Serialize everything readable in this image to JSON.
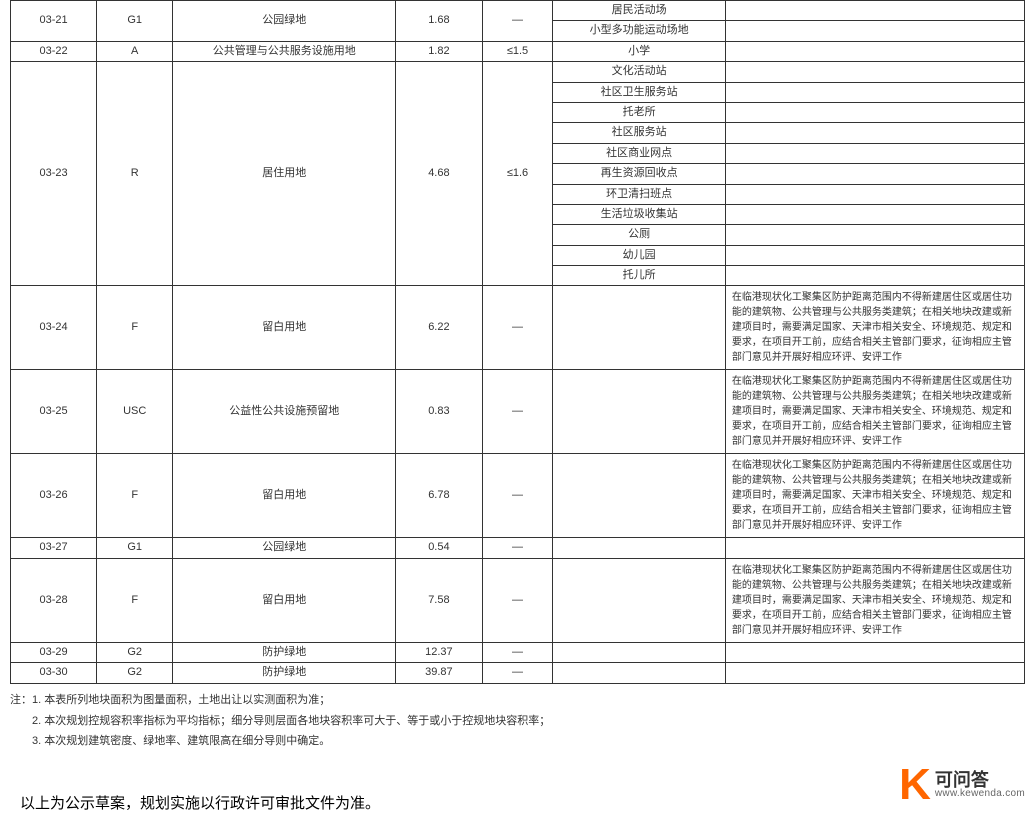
{
  "table": {
    "col_widths_pct": [
      8.5,
      7.5,
      22,
      8.5,
      7,
      17,
      29.5
    ],
    "rows": [
      {
        "id": "03-21",
        "code": "G1",
        "usage": "公园绿地",
        "area": "1.68",
        "ratio": "—",
        "facilities": [
          "居民活动场",
          "小型多功能运动场地"
        ],
        "remarks": [
          "",
          ""
        ]
      },
      {
        "id": "03-22",
        "code": "A",
        "usage": "公共管理与公共服务设施用地",
        "area": "1.82",
        "ratio": "≤1.5",
        "facilities": [
          "小学"
        ],
        "remarks": [
          ""
        ]
      },
      {
        "id": "03-23",
        "code": "R",
        "usage": "居住用地",
        "area": "4.68",
        "ratio": "≤1.6",
        "facilities": [
          "文化活动站",
          "社区卫生服务站",
          "托老所",
          "社区服务站",
          "社区商业网点",
          "再生资源回收点",
          "环卫清扫班点",
          "生活垃圾收集站",
          "公厕",
          "幼儿园",
          "托儿所"
        ],
        "remarks": [
          "",
          "",
          "",
          "",
          "",
          "",
          "",
          "",
          "",
          "",
          ""
        ]
      },
      {
        "id": "03-24",
        "code": "F",
        "usage": "留白用地",
        "area": "6.22",
        "ratio": "—",
        "facilities": [
          ""
        ],
        "remarks": [
          "在临港现状化工聚集区防护距离范围内不得新建居住区或居住功能的建筑物、公共管理与公共服务类建筑；在相关地块改建或新建项目时，需要满足国家、天津市相关安全、环境规范、规定和要求，在项目开工前，应结合相关主管部门要求，征询相应主管部门意见并开展好相应环评、安评工作"
        ]
      },
      {
        "id": "03-25",
        "code": "USC",
        "usage": "公益性公共设施预留地",
        "area": "0.83",
        "ratio": "—",
        "facilities": [
          ""
        ],
        "remarks": [
          "在临港现状化工聚集区防护距离范围内不得新建居住区或居住功能的建筑物、公共管理与公共服务类建筑；在相关地块改建或新建项目时，需要满足国家、天津市相关安全、环境规范、规定和要求，在项目开工前，应结合相关主管部门要求，征询相应主管部门意见并开展好相应环评、安评工作"
        ]
      },
      {
        "id": "03-26",
        "code": "F",
        "usage": "留白用地",
        "area": "6.78",
        "ratio": "—",
        "facilities": [
          ""
        ],
        "remarks": [
          "在临港现状化工聚集区防护距离范围内不得新建居住区或居住功能的建筑物、公共管理与公共服务类建筑；在相关地块改建或新建项目时，需要满足国家、天津市相关安全、环境规范、规定和要求，在项目开工前，应结合相关主管部门要求，征询相应主管部门意见并开展好相应环评、安评工作"
        ]
      },
      {
        "id": "03-27",
        "code": "G1",
        "usage": "公园绿地",
        "area": "0.54",
        "ratio": "—",
        "facilities": [
          ""
        ],
        "remarks": [
          ""
        ]
      },
      {
        "id": "03-28",
        "code": "F",
        "usage": "留白用地",
        "area": "7.58",
        "ratio": "—",
        "facilities": [
          ""
        ],
        "remarks": [
          "在临港现状化工聚集区防护距离范围内不得新建居住区或居住功能的建筑物、公共管理与公共服务类建筑；在相关地块改建或新建项目时，需要满足国家、天津市相关安全、环境规范、规定和要求，在项目开工前，应结合相关主管部门要求，征询相应主管部门意见并开展好相应环评、安评工作"
        ]
      },
      {
        "id": "03-29",
        "code": "G2",
        "usage": "防护绿地",
        "area": "12.37",
        "ratio": "—",
        "facilities": [
          ""
        ],
        "remarks": [
          ""
        ]
      },
      {
        "id": "03-30",
        "code": "G2",
        "usage": "防护绿地",
        "area": "39.87",
        "ratio": "—",
        "facilities": [
          ""
        ],
        "remarks": [
          ""
        ]
      }
    ]
  },
  "notes": {
    "prefix": "注：",
    "items": [
      "1. 本表所列地块面积为图量面积，土地出让以实测面积为准；",
      "2. 本次规划控规容积率指标为平均指标；细分导则层面各地块容积率可大于、等于或小于控规地块容积率；",
      "3. 本次规划建筑密度、绿地率、建筑限高在细分导则中确定。"
    ]
  },
  "footer_note": "以上为公示草案，规划实施以行政许可审批文件为准。",
  "logo": {
    "letter": "K",
    "cn": "可问答",
    "url": "www.kewenda.com",
    "letter_color": "#ff6600"
  }
}
